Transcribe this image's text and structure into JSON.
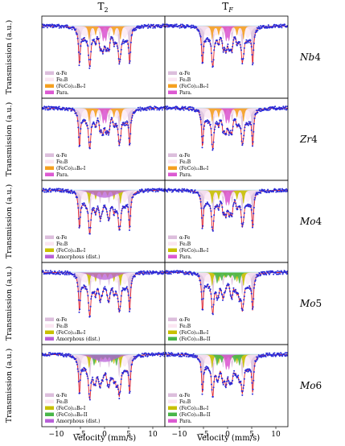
{
  "chart_data": {
    "type": "scatter",
    "columns": [
      "T$_2$",
      "T$_F$"
    ],
    "column_titles": [
      "T₂",
      "Tᵮ"
    ],
    "rows": [
      "Nb4",
      "Zr4",
      "Mo4",
      "Mo5",
      "Mo6"
    ],
    "xlabel": "Velocity (mm/s)",
    "ylabel": "Transmission (a.u.)",
    "xlim": [
      -13,
      12.5
    ],
    "xticks": [
      -10,
      -5,
      0,
      5,
      10
    ],
    "colors": {
      "alpha_fe": "#dcbedc",
      "fe2b": "#fbe6f2",
      "fecoB_I": "#f5a020",
      "fecoB_I_alt": "#c8c000",
      "fecoB_II": "#49b649",
      "para": "#dc5ad2",
      "amorphous": "#b860d8",
      "fit": "#e0202a",
      "points": "#2a2ad8"
    },
    "legend_labels": {
      "alpha_fe": "α-Fe",
      "fe2b": "Fe₂B",
      "fecoB_I": "(FeCo)₂₃B₆-I",
      "fecoB_II": "(FeCo)₂₃B₆-II",
      "para": "Para.",
      "amorphous": "Amorphous (dist.)"
    },
    "panels": [
      {
        "col": 0,
        "row": 0,
        "legend": [
          "alpha_fe",
          "fe2b",
          "fecoB_I",
          "para"
        ],
        "bcolor": "#f5a020",
        "para": true,
        "amorph": false,
        "b2": false
      },
      {
        "col": 1,
        "row": 0,
        "legend": [
          "alpha_fe",
          "fe2b",
          "fecoB_I",
          "para"
        ],
        "bcolor": "#f5a020",
        "para": true,
        "amorph": false,
        "b2": false
      },
      {
        "col": 0,
        "row": 1,
        "legend": [
          "alpha_fe",
          "fe2b",
          "fecoB_I",
          "para"
        ],
        "bcolor": "#f5a020",
        "para": true,
        "amorph": false,
        "b2": false
      },
      {
        "col": 1,
        "row": 1,
        "legend": [
          "alpha_fe",
          "fe2b",
          "fecoB_I",
          "para"
        ],
        "bcolor": "#f5a020",
        "para": true,
        "amorph": false,
        "b2": false
      },
      {
        "col": 0,
        "row": 2,
        "legend": [
          "alpha_fe",
          "fe2b",
          "fecoB_I",
          "amorphous"
        ],
        "bcolor": "#c8c000",
        "para": false,
        "amorph": true,
        "b2": false
      },
      {
        "col": 1,
        "row": 2,
        "legend": [
          "alpha_fe",
          "fe2b",
          "fecoB_I",
          "para"
        ],
        "bcolor": "#c8c000",
        "para": true,
        "amorph": false,
        "b2": false
      },
      {
        "col": 0,
        "row": 3,
        "legend": [
          "alpha_fe",
          "fe2b",
          "fecoB_I",
          "amorphous"
        ],
        "bcolor": "#c8c000",
        "para": false,
        "amorph": true,
        "b2": false
      },
      {
        "col": 1,
        "row": 3,
        "legend": [
          "alpha_fe",
          "fe2b",
          "fecoB_I",
          "fecoB_II"
        ],
        "bcolor": "#c8c000",
        "para": false,
        "amorph": false,
        "b2": true
      },
      {
        "col": 0,
        "row": 4,
        "legend": [
          "alpha_fe",
          "fe2b",
          "fecoB_I",
          "fecoB_II",
          "amorphous"
        ],
        "bcolor": "#c8c000",
        "para": false,
        "amorph": true,
        "b2": true
      },
      {
        "col": 1,
        "row": 4,
        "legend": [
          "alpha_fe",
          "fe2b",
          "fecoB_I",
          "fecoB_II",
          "para"
        ],
        "bcolor": "#c8c000",
        "para": true,
        "amorph": false,
        "b2": true
      }
    ]
  }
}
